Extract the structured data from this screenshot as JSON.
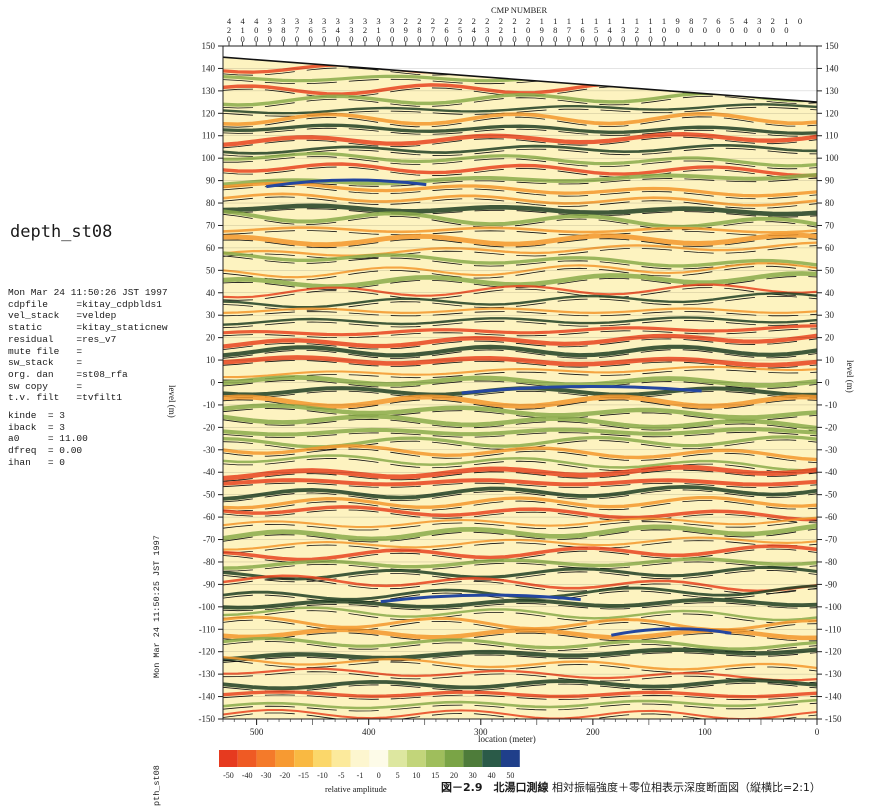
{
  "left_panel": {
    "title": "depth_st08",
    "params": [
      "Mon Mar 24 11:50:26 JST 1997",
      "cdpfile     =kitay_cdpblds1",
      "vel_stack   =veldep",
      "static      =kitay_staticnew",
      "residual    =res_v7",
      "mute file   =",
      "sw_stack    =",
      "org. dan    =st08_rfa",
      "sw copy     =",
      "t.v. filt   =tvfilt1"
    ],
    "kparams": [
      "kinde  = 3",
      "iback  = 3",
      "a0     = 11.00",
      "dfreq  = 0.00",
      "ihan   = 0"
    ],
    "vertical_stamp": "Mon Mar 24 11:50:25 JST 1997",
    "vertical_stamp_2": "pth_st08"
  },
  "chart_data": {
    "type": "heatmap",
    "top_axis_title": "CMP NUMBER",
    "cmp_numbers": [
      "420",
      "410",
      "400",
      "390",
      "380",
      "370",
      "360",
      "350",
      "340",
      "330",
      "320",
      "310",
      "300",
      "290",
      "280",
      "270",
      "260",
      "250",
      "240",
      "230",
      "220",
      "210",
      "200",
      "190",
      "180",
      "170",
      "160",
      "150",
      "140",
      "130",
      "120",
      "110",
      "100",
      "90",
      "80",
      "70",
      "60",
      "50",
      "40",
      "30",
      "20",
      "10",
      "0"
    ],
    "xlabel": "location (meter)",
    "x_ticks": [
      500,
      400,
      300,
      200,
      100,
      0
    ],
    "xlim": [
      530,
      0
    ],
    "ylabel": "level (m)",
    "ylim": [
      -150,
      150
    ],
    "y_ticks": [
      150,
      140,
      130,
      120,
      110,
      100,
      90,
      80,
      70,
      60,
      50,
      40,
      30,
      20,
      10,
      0,
      -10,
      -20,
      -30,
      -40,
      -50,
      -60,
      -70,
      -80,
      -90,
      -100,
      -110,
      -120,
      -130,
      -140,
      -150
    ],
    "ground_surface": {
      "x": [
        530,
        0
      ],
      "level": [
        145,
        125
      ]
    },
    "colorbar": {
      "label": "relative amplitude",
      "ticks": [
        "-50",
        "-40",
        "-30",
        "-20",
        "-15",
        "-10",
        "-5",
        "-1",
        "0",
        "5",
        "10",
        "15",
        "20",
        "30",
        "40",
        "50"
      ],
      "colors": [
        "#e63a1f",
        "#ef5a24",
        "#f47a2a",
        "#f79a32",
        "#f9b942",
        "#fbd76a",
        "#fcea9c",
        "#fdf6cf",
        "#fdfbe8",
        "#dde7a0",
        "#c2d57a",
        "#9fbe5c",
        "#7aa446",
        "#4e7c3a",
        "#2a5a48",
        "#1f3f8a"
      ]
    }
  },
  "caption": {
    "bold": "図－2.9　北湯口測線",
    "rest": "相対振幅強度＋零位相表示深度断面図（縦横比=2:1）"
  },
  "colors": {
    "background": "#fdf3c0",
    "trough_red": "#e8431f",
    "trough_orange": "#f3962b",
    "peak_dark": "#1e3d22",
    "peak_blue": "#2447a0",
    "olive": "#8aaa4a"
  }
}
